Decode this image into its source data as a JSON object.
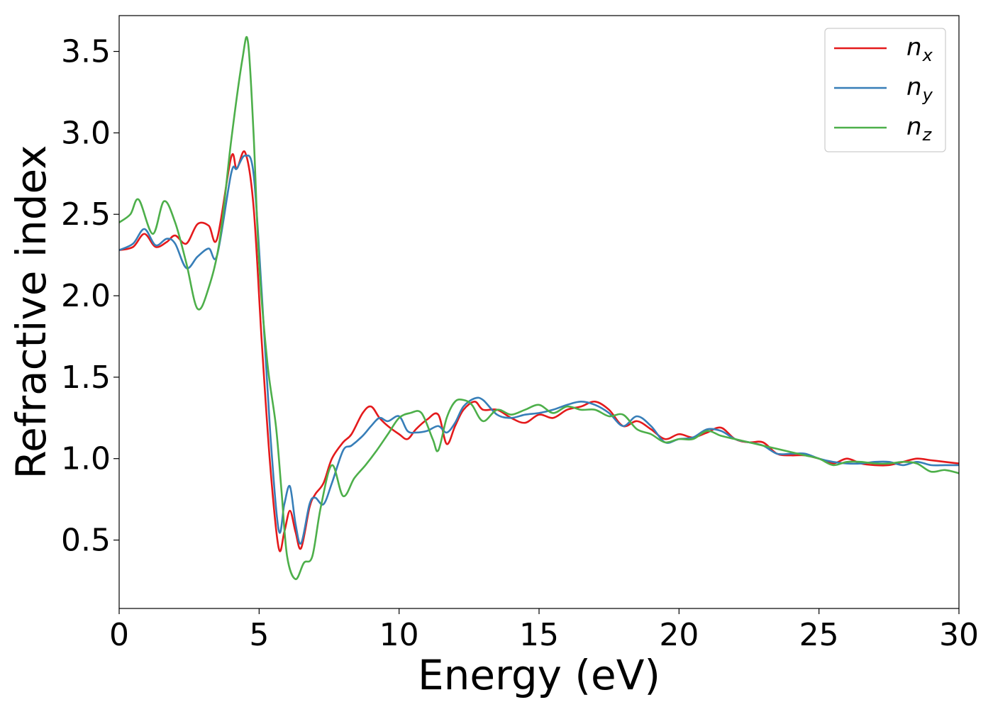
{
  "chart_data": {
    "type": "line",
    "title": "",
    "xlabel": "Energy (eV)",
    "ylabel": "Refractive index",
    "xlim": [
      0,
      30
    ],
    "ylim": [
      0.08,
      3.72
    ],
    "xticks": [
      0,
      5,
      10,
      15,
      20,
      25,
      30
    ],
    "xtick_labels": [
      "0",
      "5",
      "10",
      "15",
      "20",
      "25",
      "30"
    ],
    "yticks": [
      0.5,
      1.0,
      1.5,
      2.0,
      2.5,
      3.0,
      3.5
    ],
    "ytick_labels": [
      "0.5",
      "1.0",
      "1.5",
      "2.0",
      "2.5",
      "3.0",
      "3.5"
    ],
    "grid": false,
    "legend_position": "top-right",
    "series": [
      {
        "name": "n",
        "subscript": "x",
        "color": "#e41a1c",
        "x": [
          0,
          0.5,
          0.9,
          1.3,
          1.7,
          2.0,
          2.4,
          2.8,
          3.2,
          3.5,
          4.0,
          4.2,
          4.5,
          4.8,
          5.1,
          5.4,
          5.7,
          5.9,
          6.1,
          6.3,
          6.5,
          6.8,
          7.0,
          7.3,
          7.6,
          8.0,
          8.3,
          8.7,
          9.0,
          9.3,
          9.6,
          10.0,
          10.3,
          10.6,
          11.0,
          11.4,
          11.7,
          12.0,
          12.3,
          12.7,
          13.0,
          13.5,
          14.0,
          14.5,
          15.0,
          15.5,
          16.0,
          16.5,
          17.0,
          17.5,
          18.0,
          18.5,
          19.0,
          19.5,
          20.0,
          20.5,
          21.0,
          21.5,
          22.0,
          22.5,
          23.0,
          23.5,
          24.0,
          24.5,
          25.0,
          25.5,
          26.0,
          26.5,
          27.0,
          27.5,
          28.0,
          28.5,
          29.0,
          29.5,
          30.0
        ],
        "y": [
          2.28,
          2.3,
          2.38,
          2.3,
          2.33,
          2.37,
          2.32,
          2.44,
          2.43,
          2.35,
          2.85,
          2.78,
          2.88,
          2.55,
          1.7,
          0.95,
          0.45,
          0.55,
          0.68,
          0.55,
          0.45,
          0.7,
          0.78,
          0.85,
          1.0,
          1.1,
          1.15,
          1.28,
          1.32,
          1.25,
          1.2,
          1.15,
          1.12,
          1.18,
          1.24,
          1.27,
          1.09,
          1.2,
          1.3,
          1.35,
          1.3,
          1.3,
          1.25,
          1.22,
          1.27,
          1.25,
          1.3,
          1.32,
          1.35,
          1.3,
          1.2,
          1.23,
          1.18,
          1.12,
          1.15,
          1.13,
          1.16,
          1.19,
          1.12,
          1.1,
          1.1,
          1.03,
          1.02,
          1.02,
          1.0,
          0.97,
          1.0,
          0.97,
          0.96,
          0.96,
          0.98,
          1.0,
          0.99,
          0.98,
          0.97
        ]
      },
      {
        "name": "n",
        "subscript": "y",
        "color": "#377eb8",
        "x": [
          0,
          0.5,
          0.9,
          1.3,
          1.7,
          2.0,
          2.4,
          2.8,
          3.2,
          3.5,
          4.0,
          4.2,
          4.5,
          4.8,
          5.1,
          5.4,
          5.7,
          5.9,
          6.1,
          6.3,
          6.5,
          6.8,
          7.0,
          7.3,
          7.6,
          8.0,
          8.3,
          8.7,
          9.0,
          9.3,
          9.6,
          10.0,
          10.3,
          10.6,
          11.0,
          11.4,
          11.7,
          12.0,
          12.3,
          12.7,
          13.0,
          13.5,
          14.0,
          14.5,
          15.0,
          15.5,
          16.0,
          16.5,
          17.0,
          17.5,
          18.0,
          18.5,
          19.0,
          19.5,
          20.0,
          20.5,
          21.0,
          21.5,
          22.0,
          22.5,
          23.0,
          23.5,
          24.0,
          24.5,
          25.0,
          25.5,
          26.0,
          26.5,
          27.0,
          27.5,
          28.0,
          28.5,
          29.0,
          29.5,
          30.0
        ],
        "y": [
          2.28,
          2.32,
          2.41,
          2.31,
          2.35,
          2.32,
          2.17,
          2.24,
          2.29,
          2.25,
          2.75,
          2.78,
          2.86,
          2.75,
          2.0,
          1.15,
          0.56,
          0.72,
          0.83,
          0.6,
          0.48,
          0.72,
          0.76,
          0.72,
          0.85,
          1.05,
          1.08,
          1.14,
          1.2,
          1.25,
          1.23,
          1.26,
          1.17,
          1.16,
          1.17,
          1.2,
          1.16,
          1.22,
          1.32,
          1.37,
          1.36,
          1.27,
          1.25,
          1.27,
          1.28,
          1.3,
          1.33,
          1.35,
          1.33,
          1.28,
          1.2,
          1.26,
          1.2,
          1.1,
          1.12,
          1.13,
          1.18,
          1.17,
          1.12,
          1.1,
          1.08,
          1.03,
          1.03,
          1.03,
          1.0,
          0.98,
          0.97,
          0.97,
          0.98,
          0.98,
          0.96,
          0.98,
          0.96,
          0.96,
          0.96
        ]
      },
      {
        "name": "n",
        "subscript": "z",
        "color": "#4daf4a",
        "x": [
          0,
          0.4,
          0.7,
          1.2,
          1.6,
          2.0,
          2.4,
          2.8,
          3.2,
          3.6,
          4.0,
          4.4,
          4.6,
          4.8,
          5.0,
          5.3,
          5.6,
          5.8,
          6.0,
          6.3,
          6.6,
          6.9,
          7.2,
          7.6,
          8.0,
          8.4,
          8.8,
          9.2,
          9.6,
          10.0,
          10.4,
          10.8,
          11.2,
          11.4,
          11.7,
          12.0,
          12.3,
          12.6,
          13.0,
          13.5,
          14.0,
          14.5,
          15.0,
          15.5,
          16.0,
          16.5,
          17.0,
          17.5,
          18.0,
          18.5,
          19.0,
          19.5,
          20.0,
          20.5,
          21.0,
          21.5,
          22.0,
          22.5,
          23.0,
          23.5,
          24.0,
          24.5,
          25.0,
          25.5,
          26.0,
          26.5,
          27.0,
          27.5,
          28.0,
          28.5,
          29.0,
          29.5,
          30.0
        ],
        "y": [
          2.45,
          2.5,
          2.59,
          2.38,
          2.58,
          2.45,
          2.2,
          1.92,
          2.05,
          2.35,
          2.95,
          3.45,
          3.56,
          3.0,
          2.2,
          1.58,
          1.2,
          0.8,
          0.4,
          0.26,
          0.36,
          0.4,
          0.7,
          0.96,
          0.77,
          0.88,
          0.96,
          1.05,
          1.15,
          1.25,
          1.28,
          1.28,
          1.12,
          1.05,
          1.25,
          1.35,
          1.36,
          1.33,
          1.23,
          1.3,
          1.27,
          1.3,
          1.33,
          1.28,
          1.32,
          1.3,
          1.3,
          1.26,
          1.27,
          1.18,
          1.15,
          1.1,
          1.12,
          1.12,
          1.17,
          1.14,
          1.12,
          1.1,
          1.08,
          1.06,
          1.04,
          1.02,
          1.0,
          0.96,
          0.98,
          0.98,
          0.97,
          0.97,
          0.98,
          0.97,
          0.92,
          0.93,
          0.91
        ]
      }
    ]
  }
}
